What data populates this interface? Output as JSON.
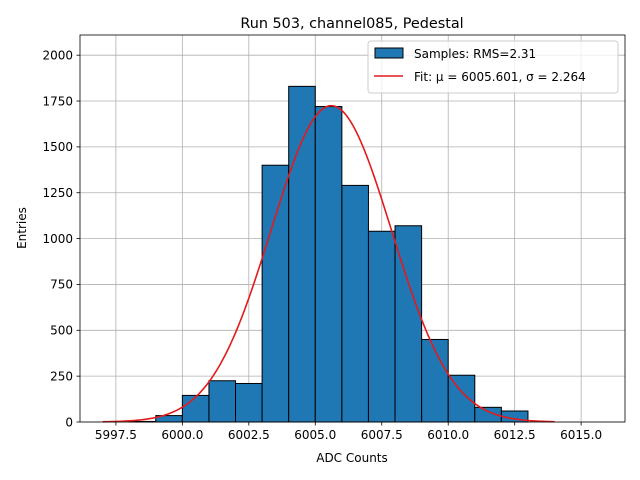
{
  "chart_data": {
    "type": "bar",
    "title": "Run 503, channel085, Pedestal",
    "xlabel": "ADC Counts",
    "ylabel": "Entries",
    "xlim": [
      5996.15,
      6016.65
    ],
    "ylim": [
      0,
      2110
    ],
    "grid": true,
    "legend_position": "top-right",
    "x_ticks": [
      {
        "value": 5997.5,
        "label": "5997.5"
      },
      {
        "value": 6000.0,
        "label": "6000.0"
      },
      {
        "value": 6002.5,
        "label": "6002.5"
      },
      {
        "value": 6005.0,
        "label": "6005.0"
      },
      {
        "value": 6007.5,
        "label": "6007.5"
      },
      {
        "value": 6010.0,
        "label": "6010.0"
      },
      {
        "value": 6012.5,
        "label": "6012.5"
      },
      {
        "value": 6015.0,
        "label": "6015.0"
      }
    ],
    "y_ticks": [
      {
        "value": 0,
        "label": "0"
      },
      {
        "value": 250,
        "label": "250"
      },
      {
        "value": 500,
        "label": "500"
      },
      {
        "value": 750,
        "label": "750"
      },
      {
        "value": 1000,
        "label": "1000"
      },
      {
        "value": 1250,
        "label": "1250"
      },
      {
        "value": 1500,
        "label": "1500"
      },
      {
        "value": 1750,
        "label": "1750"
      },
      {
        "value": 2000,
        "label": "2000"
      }
    ],
    "histogram": {
      "name": "Samples: RMS=2.31",
      "bin_width": 1.0,
      "bins": [
        {
          "x0": 5998,
          "value": 3
        },
        {
          "x0": 5999,
          "value": 35
        },
        {
          "x0": 6000,
          "value": 145
        },
        {
          "x0": 6001,
          "value": 225
        },
        {
          "x0": 6002,
          "value": 210
        },
        {
          "x0": 6003,
          "value": 1400
        },
        {
          "x0": 6004,
          "value": 1830
        },
        {
          "x0": 6005,
          "value": 1720
        },
        {
          "x0": 6006,
          "value": 1290
        },
        {
          "x0": 6007,
          "value": 1040
        },
        {
          "x0": 6008,
          "value": 1070
        },
        {
          "x0": 6009,
          "value": 450
        },
        {
          "x0": 6010,
          "value": 255
        },
        {
          "x0": 6011,
          "value": 80
        },
        {
          "x0": 6012,
          "value": 60
        }
      ],
      "color": "#1f77b4",
      "edge_color": "#000000"
    },
    "fit": {
      "name": "Fit: μ = 6005.601, σ = 2.264",
      "mu": 6005.601,
      "sigma": 2.264,
      "amplitude": 1725,
      "x_range": [
        5997.0,
        6014.0
      ],
      "color": "#e41a1c"
    }
  }
}
